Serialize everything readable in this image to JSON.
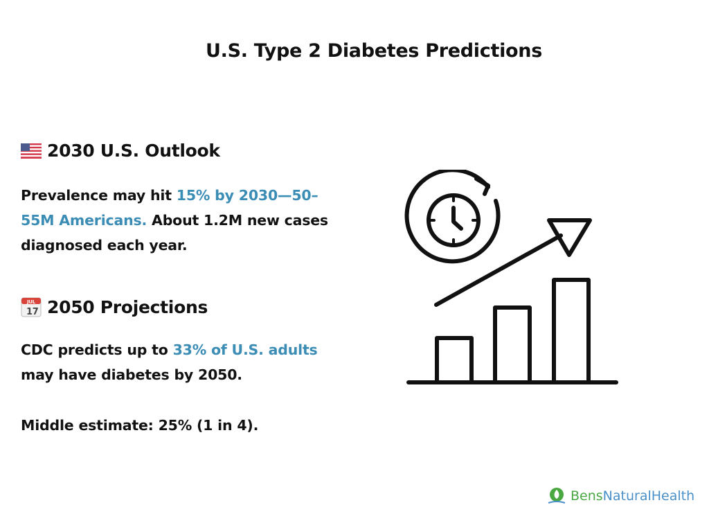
{
  "title": "U.S. Type 2 Diabetes Predictions",
  "sections": [
    {
      "icon": "us-flag-icon",
      "heading": "2030 U.S. Outlook",
      "text_before": "Prevalence may hit ",
      "highlight": "15% by 2030—50–55M Americans.",
      "text_after": " About 1.2M new cases diagnosed each year."
    },
    {
      "icon": "calendar-icon",
      "calendar_month": "JUL",
      "calendar_day": "17",
      "heading": "2050 Projections",
      "text_before": "CDC predicts up to ",
      "highlight": "33% of U.S. adults",
      "text_after": " may have diabetes by 2050.",
      "note": "Middle estimate: 25% (1 in 4)."
    }
  ],
  "illustration": "clock-growth-bar-chart-icon",
  "logo": {
    "part1": "Bens",
    "part2": "NaturalHealth",
    "color1": "#4aa843",
    "color2": "#4a90c8"
  },
  "colors": {
    "highlight": "#3b8db5",
    "text": "#111111"
  }
}
